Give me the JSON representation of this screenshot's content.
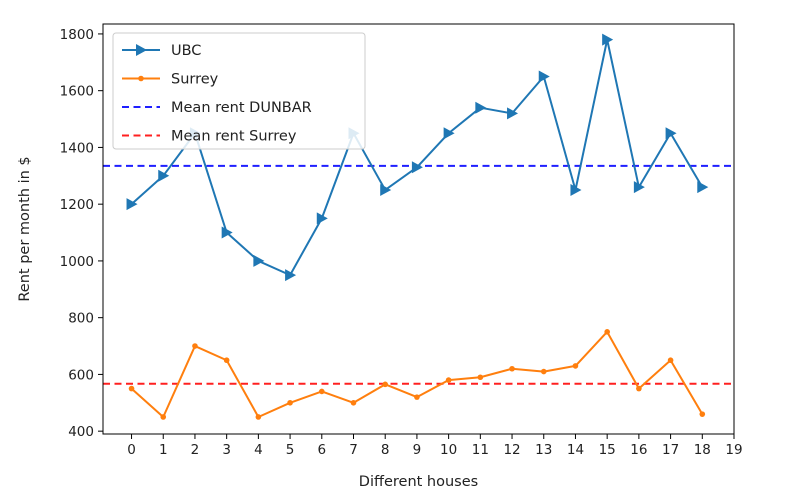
{
  "chart_data": {
    "type": "line",
    "xlabel": "Different houses",
    "ylabel": "Rent per month in $",
    "xlim": [
      -0.9,
      19.0
    ],
    "ylim": [
      390,
      1835
    ],
    "x_ticks": [
      0,
      1,
      2,
      3,
      4,
      5,
      6,
      7,
      8,
      9,
      10,
      11,
      12,
      13,
      14,
      15,
      16,
      17,
      18,
      19
    ],
    "y_ticks": [
      400,
      600,
      800,
      1000,
      1200,
      1400,
      1600,
      1800
    ],
    "grid": false,
    "legend_position": "top-left",
    "x": [
      0,
      1,
      2,
      3,
      4,
      5,
      6,
      7,
      8,
      9,
      10,
      11,
      12,
      13,
      14,
      15,
      16,
      17,
      18
    ],
    "series": [
      {
        "name": "UBC",
        "color": "#1f77b4",
        "marker": "triangle-right",
        "values": [
          1200,
          1300,
          1450,
          1100,
          1000,
          950,
          1150,
          1450,
          1250,
          1330,
          1450,
          1540,
          1520,
          1650,
          1250,
          1780,
          1260,
          1450,
          1260
        ]
      },
      {
        "name": "Surrey",
        "color": "#ff7f0e",
        "marker": "point",
        "values": [
          550,
          450,
          700,
          650,
          450,
          500,
          540,
          500,
          565,
          520,
          580,
          590,
          620,
          610,
          630,
          750,
          550,
          650,
          460
        ]
      }
    ],
    "reference_lines": [
      {
        "name": "Mean rent DUNBAR",
        "color": "#1f1fff",
        "value": 1335
      },
      {
        "name": "Mean rent Surrey",
        "color": "#ff2020",
        "value": 567
      }
    ]
  }
}
